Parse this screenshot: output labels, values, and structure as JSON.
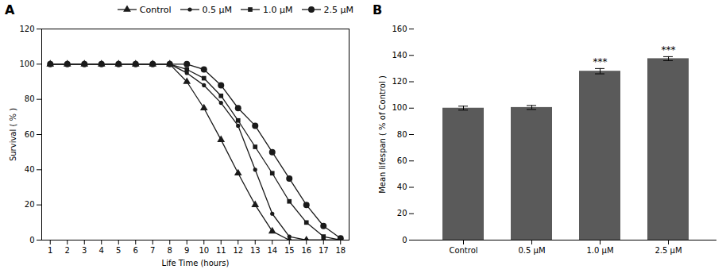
{
  "chart_data": [
    {
      "type": "line",
      "title": "A",
      "x": [
        1,
        2,
        3,
        4,
        5,
        6,
        7,
        8,
        9,
        10,
        11,
        12,
        13,
        14,
        15,
        16,
        17,
        18
      ],
      "series": [
        {
          "name": "Control",
          "color": "#1a1a1a",
          "marker": "triangle",
          "values": [
            100,
            100,
            100,
            100,
            100,
            100,
            100,
            100,
            90,
            75,
            57,
            38,
            20,
            5,
            0,
            0,
            0,
            0
          ]
        },
        {
          "name": "0.5 μM",
          "color": "#1a1a1a",
          "marker": "circle",
          "values": [
            100,
            100,
            100,
            100,
            100,
            100,
            100,
            100,
            95,
            88,
            78,
            65,
            40,
            15,
            2,
            0,
            0,
            0
          ]
        },
        {
          "name": "1.0 μM",
          "color": "#1a1a1a",
          "marker": "square",
          "values": [
            100,
            100,
            100,
            100,
            100,
            100,
            100,
            100,
            97,
            92,
            82,
            68,
            53,
            38,
            22,
            10,
            2,
            0
          ]
        },
        {
          "name": "2.5 μM",
          "color": "#1a1a1a",
          "marker": "circle",
          "values": [
            100,
            100,
            100,
            100,
            100,
            100,
            100,
            100,
            100,
            97,
            88,
            75,
            65,
            50,
            35,
            20,
            8,
            1
          ]
        }
      ],
      "xlabel": "Life Time (hours)",
      "ylabel": "Survival ( % )",
      "xlim": [
        0.5,
        18.5
      ],
      "xticks": [
        1,
        2,
        3,
        4,
        5,
        6,
        7,
        8,
        9,
        10,
        11,
        12,
        13,
        14,
        15,
        16,
        17,
        18
      ],
      "ylim": [
        0,
        120
      ],
      "yticks": [
        0,
        20,
        40,
        60,
        80,
        100,
        120
      ],
      "legend": "upper right",
      "grid": false
    },
    {
      "type": "bar",
      "title": "B",
      "categories": [
        "Control",
        "0.5 μM",
        "1.0 μM",
        "2.5 μM"
      ],
      "values": [
        100,
        100.5,
        128,
        137.5
      ],
      "errors": [
        1.5,
        1.5,
        2.0,
        1.5
      ],
      "color": "#5a5a5a",
      "ylabel": "Mean lifespan ( % of Control )",
      "ylim": [
        0,
        160
      ],
      "yticks": [
        0,
        20,
        40,
        60,
        80,
        100,
        120,
        140,
        160
      ],
      "annotations": [
        {
          "x": "1.0 μM",
          "text": "***"
        },
        {
          "x": "2.5 μM",
          "text": "***"
        }
      ],
      "grid": false
    }
  ]
}
